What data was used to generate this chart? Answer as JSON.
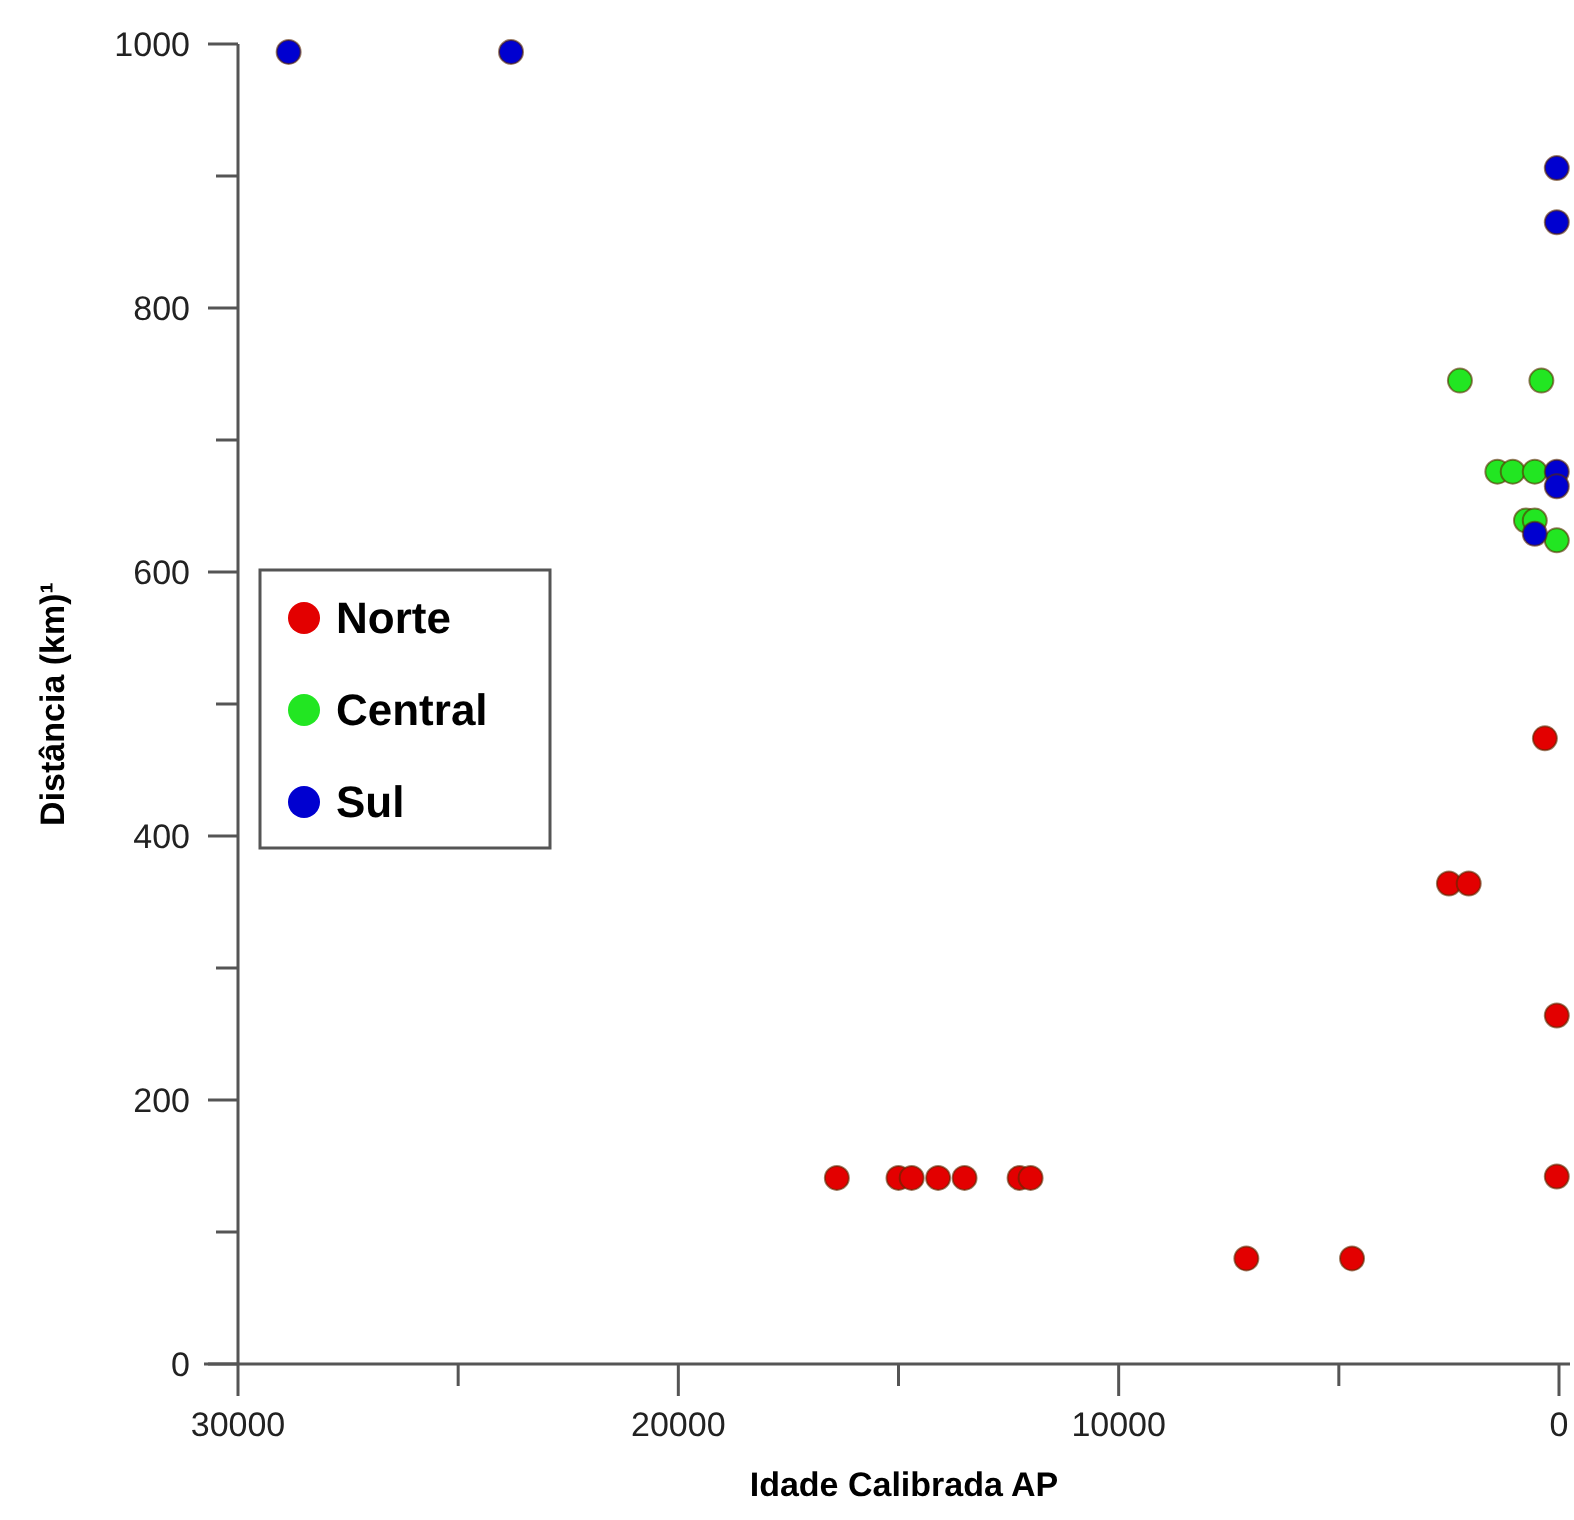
{
  "chart_data": {
    "type": "scatter",
    "xlabel": "Idade Calibrada AP",
    "ylabel": "Distância (km)¹",
    "xlim": [
      30000,
      -250
    ],
    "xticks": [
      30000,
      {
        "value": 25000,
        "label": null
      },
      20000,
      {
        "value": 15000,
        "label": null
      },
      10000,
      {
        "value": 5000,
        "label": null
      },
      0
    ],
    "ylim": [
      0,
      1000
    ],
    "yticks": [
      0,
      {
        "value": 100,
        "label": null
      },
      200,
      {
        "value": 300,
        "label": null
      },
      400,
      {
        "value": 500,
        "label": null
      },
      600,
      {
        "value": 700,
        "label": null
      },
      800,
      {
        "value": 900,
        "label": null
      },
      1000
    ],
    "legend": "left",
    "marker": "circle",
    "grid": false,
    "series": [
      {
        "name": "Norte",
        "color": "#e30000",
        "x": [
          320,
          2500,
          2050,
          50,
          50,
          16400,
          15000,
          14700,
          14100,
          13500,
          12250,
          12000,
          7100,
          4700
        ],
        "values": [
          474,
          364,
          364,
          264,
          142,
          141,
          141,
          141,
          141,
          141,
          141,
          141,
          80,
          80
        ]
      },
      {
        "name": "Central",
        "color": "#22e622",
        "x": [
          2250,
          400,
          1400,
          1050,
          550,
          750,
          550,
          50
        ],
        "values": [
          745,
          745,
          676,
          676,
          676,
          639,
          639,
          624
        ]
      },
      {
        "name": "Sul",
        "color": "#0000d0",
        "x": [
          28850,
          23800,
          50,
          50,
          50,
          50,
          550
        ],
        "values": [
          994,
          994,
          906,
          865,
          676,
          665,
          629
        ]
      }
    ]
  }
}
